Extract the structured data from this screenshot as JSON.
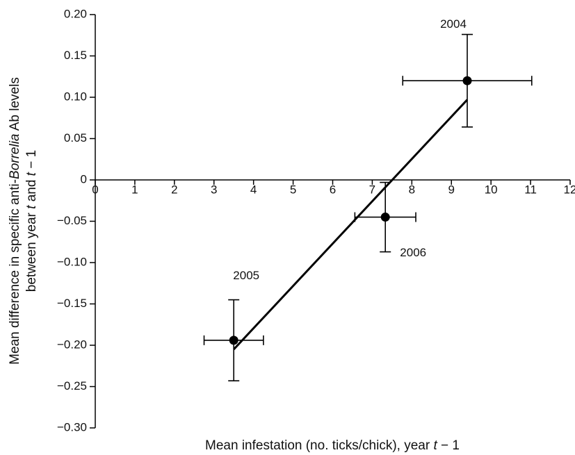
{
  "chart_data": {
    "type": "scatter",
    "ylabel_line1": [
      "Mean difference in specific anti-",
      "Borrelia",
      " Ab levels"
    ],
    "ylabel_line2": [
      "between year ",
      "t",
      " and ",
      "t",
      " − 1"
    ],
    "xlabel": [
      "Mean infestation (no. ticks/chick), year ",
      "t",
      " − 1"
    ],
    "point_labels": [
      "2004",
      "2006",
      "2005"
    ],
    "x": [
      9.4,
      7.33,
      3.5
    ],
    "y": [
      0.12,
      -0.045,
      -0.194
    ],
    "xerr": [
      1.63,
      0.77,
      0.75
    ],
    "yerr": [
      0.056,
      0.042,
      0.049
    ],
    "color": "#000000",
    "fit": {
      "x": [
        3.5,
        9.4
      ],
      "y": [
        -0.205,
        0.097
      ]
    },
    "xlim": [
      0,
      12
    ],
    "xticks": [
      0,
      1,
      2,
      3,
      4,
      5,
      6,
      7,
      8,
      9,
      10,
      11,
      12
    ],
    "ylim": [
      -0.3,
      0.2
    ],
    "yticks": [
      {
        "value": -0.3,
        "label": "−0.30"
      },
      {
        "value": -0.25,
        "label": "−0.25"
      },
      {
        "value": -0.2,
        "label": "−0.20"
      },
      {
        "value": -0.15,
        "label": "−0.15"
      },
      {
        "value": -0.1,
        "label": "−0.10"
      },
      {
        "value": -0.05,
        "label": "−0.05"
      },
      0,
      {
        "value": 0.05,
        "label": "0.05"
      },
      {
        "value": 0.1,
        "label": "0.10"
      },
      {
        "value": 0.15,
        "label": "0.15"
      },
      {
        "value": 0.2,
        "label": "0.20"
      }
    ]
  }
}
